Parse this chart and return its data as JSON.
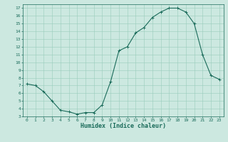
{
  "title": "",
  "xlabel": "Humidex (Indice chaleur)",
  "ylabel": "",
  "background_color": "#cce8e0",
  "line_color": "#1a6b5a",
  "marker_color": "#1a6b5a",
  "grid_color": "#99ccbb",
  "grid_color_minor": "#bbddcc",
  "xlim": [
    -0.5,
    23.5
  ],
  "ylim": [
    3,
    17.5
  ],
  "yticks": [
    3,
    4,
    5,
    6,
    7,
    8,
    9,
    10,
    11,
    12,
    13,
    14,
    15,
    16,
    17
  ],
  "xticks": [
    0,
    1,
    2,
    3,
    4,
    5,
    6,
    7,
    8,
    9,
    10,
    11,
    12,
    13,
    14,
    15,
    16,
    17,
    18,
    19,
    20,
    21,
    22,
    23
  ],
  "x": [
    0,
    1,
    2,
    3,
    4,
    5,
    6,
    7,
    8,
    9,
    10,
    11,
    12,
    13,
    14,
    15,
    16,
    17,
    18,
    19,
    20,
    21,
    22,
    23
  ],
  "y": [
    7.2,
    7.0,
    6.2,
    5.0,
    3.8,
    3.6,
    3.3,
    3.5,
    3.5,
    4.5,
    7.5,
    11.5,
    12.0,
    13.8,
    14.5,
    15.8,
    16.5,
    17.0,
    17.0,
    16.5,
    15.0,
    11.0,
    8.3,
    7.8
  ]
}
